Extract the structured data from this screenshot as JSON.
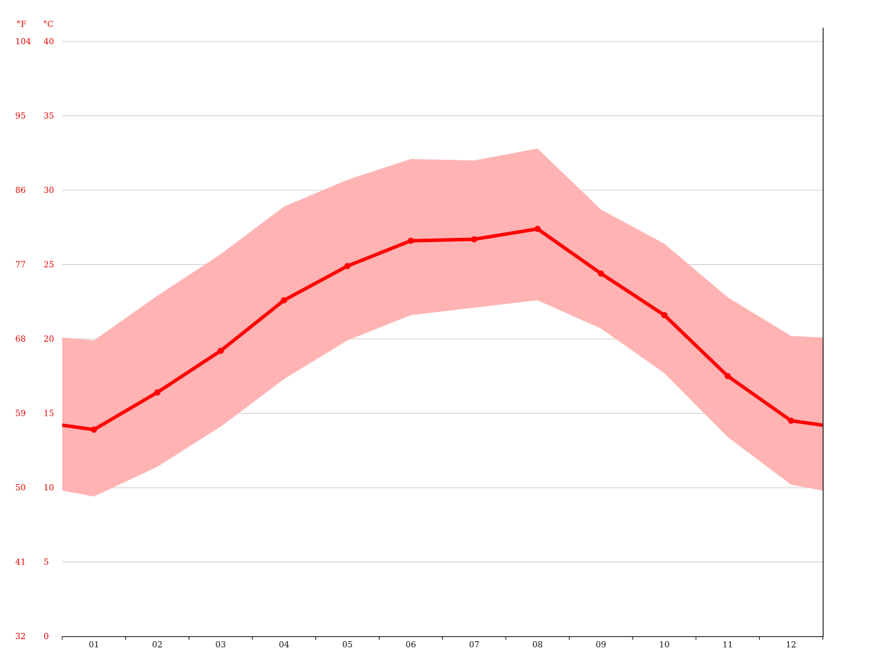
{
  "chart_data": {
    "type": "line",
    "title": "",
    "xlabel": "",
    "ylabel": "",
    "units": {
      "left_outer": "°F",
      "left_inner": "°C"
    },
    "categories": [
      "01",
      "02",
      "03",
      "04",
      "05",
      "06",
      "07",
      "08",
      "09",
      "10",
      "11",
      "12"
    ],
    "ylim": [
      0,
      40
    ],
    "yticks_c": [
      "0",
      "5",
      "10",
      "15",
      "20",
      "25",
      "30",
      "35",
      "40"
    ],
    "yticks_f": [
      "32",
      "41",
      "50",
      "59",
      "68",
      "77",
      "86",
      "95",
      "104"
    ],
    "grid": true,
    "series": [
      {
        "role": "mean",
        "values": [
          13.9,
          16.4,
          19.2,
          22.6,
          24.9,
          26.6,
          26.7,
          27.4,
          24.4,
          21.6,
          17.5,
          14.5
        ],
        "edge_left": 14.2,
        "edge_right": 14.2,
        "color": "#ff0000"
      },
      {
        "role": "max",
        "values": [
          19.9,
          22.9,
          25.7,
          28.9,
          30.7,
          32.1,
          32.0,
          32.8,
          28.7,
          26.4,
          22.8,
          20.2
        ],
        "edge_left": 20.1,
        "edge_right": 20.1,
        "color": "#ffb3b3"
      },
      {
        "role": "min",
        "values": [
          9.4,
          11.4,
          14.1,
          17.3,
          19.9,
          21.6,
          22.1,
          22.6,
          20.7,
          17.7,
          13.4,
          10.2
        ],
        "edge_left": 9.8,
        "edge_right": 9.8,
        "color": "#ffb3b3"
      }
    ],
    "colors": {
      "axis_labels": "#e60000",
      "grid": "#cccccc",
      "band": "#ffb3b3",
      "line": "#ff0000"
    }
  }
}
